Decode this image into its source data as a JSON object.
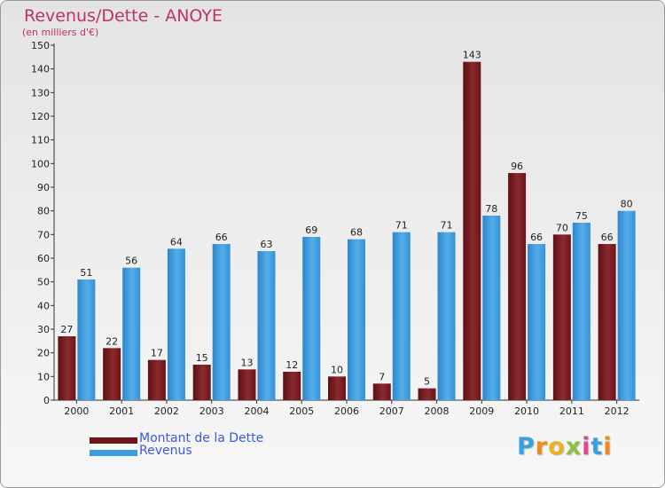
{
  "title": "Revenus/Dette - ANOYE",
  "subtitle": "(en milliers d'€)",
  "colors": {
    "dette": "#7a1a1f",
    "revenus": "#3d9be0",
    "title": "#c0306a",
    "legend_text": "#3b5bd6"
  },
  "legend": {
    "dette_label": "Montant de la Dette",
    "revenus_label": "Revenus"
  },
  "logo": {
    "letters": [
      "P",
      "r",
      "o",
      "x",
      "i",
      "t",
      "i"
    ],
    "colors": [
      "#3aa0e0",
      "#f08a1c",
      "#f0b21c",
      "#8bc43c",
      "#e04a8a",
      "#3aa0e0",
      "#f08a1c"
    ]
  },
  "chart_data": {
    "type": "bar",
    "categories": [
      "2000",
      "2001",
      "2002",
      "2003",
      "2004",
      "2005",
      "2006",
      "2007",
      "2008",
      "2009",
      "2010",
      "2011",
      "2012"
    ],
    "series": [
      {
        "name": "Montant de la Dette",
        "values": [
          27,
          22,
          17,
          15,
          13,
          12,
          10,
          7,
          5,
          143,
          96,
          70,
          66
        ]
      },
      {
        "name": "Revenus",
        "values": [
          51,
          56,
          64,
          66,
          63,
          69,
          68,
          71,
          71,
          78,
          66,
          75,
          80
        ]
      }
    ],
    "ylim": [
      0,
      150
    ],
    "yticks": [
      0,
      10,
      20,
      30,
      40,
      50,
      60,
      70,
      80,
      90,
      100,
      110,
      120,
      130,
      140,
      150
    ],
    "grid": false,
    "legend_position": "bottom-left"
  }
}
